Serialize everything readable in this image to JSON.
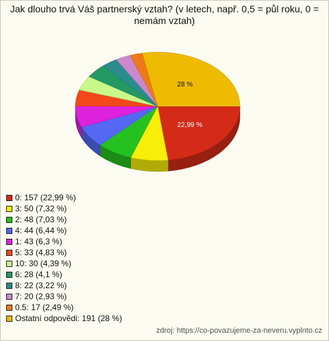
{
  "chart_data": {
    "type": "pie",
    "title": "Jak dlouho trvá Váš partnerský vztah? (v letech, např. 0,5 = půl roku, 0 = nemám vztah)",
    "categories": [
      "0: 157 (22,99 %)",
      "3: 50 (7,32 %)",
      "2: 48 (7,03 %)",
      "4: 44 (6,44 %)",
      "1: 43 (6,3 %)",
      "5: 33 (4,83 %)",
      "10: 30 (4,39 %)",
      "6: 28 (4,1 %)",
      "8: 22 (3,22 %)",
      "7: 20 (2,93 %)",
      "0.5: 17 (2,49 %)",
      "Ostatní odpovědi: 191 (28 %)"
    ],
    "values": [
      22.99,
      7.32,
      7.03,
      6.44,
      6.3,
      4.83,
      4.39,
      4.1,
      3.22,
      2.93,
      2.49,
      28
    ],
    "value_labels": [
      "22,99 %",
      null,
      null,
      null,
      null,
      null,
      null,
      null,
      null,
      null,
      null,
      "28 %"
    ],
    "colors": [
      "#d42b18",
      "#f7ee0a",
      "#25c21f",
      "#5468f4",
      "#dd22dd",
      "#f2481a",
      "#c8f88a",
      "#249a62",
      "#2a8c8c",
      "#cc88cc",
      "#ec7a18",
      "#eebb00"
    ],
    "source": "zdroj: https://co-povazujeme-za-neveru.vyplnto.cz"
  }
}
